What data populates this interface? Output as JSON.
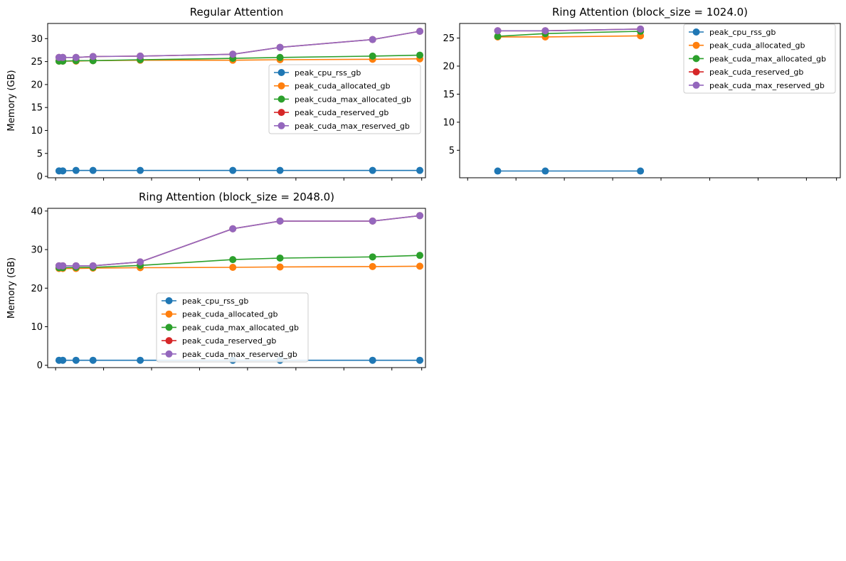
{
  "figure": {
    "colors": {
      "peak_cpu_rss_gb": "#1f77b4",
      "peak_cuda_allocated_gb": "#ff7f0e",
      "peak_cuda_max_allocated_gb": "#2ca02c",
      "peak_cuda_reserved_gb": "#d62728",
      "peak_cuda_max_reserved_gb": "#9467bd"
    }
  },
  "chart_data": [
    {
      "type": "line",
      "title": "Regular Attention",
      "xlabel": "",
      "ylabel": "Memory (GB)",
      "xlim": [
        0,
        1
      ],
      "ylim": [
        -0.3,
        33.3
      ],
      "yticks": [
        0,
        5,
        10,
        15,
        20,
        25,
        30
      ],
      "grid": false,
      "legend": "center-right",
      "x": [
        0.03,
        0.04,
        0.075,
        0.12,
        0.245,
        0.49,
        0.615,
        0.86,
        0.985
      ],
      "series": [
        {
          "name": "peak_cpu_rss_gb",
          "values": [
            1.2,
            1.2,
            1.3,
            1.3,
            1.3,
            1.3,
            1.3,
            1.3,
            1.3
          ]
        },
        {
          "name": "peak_cuda_allocated_gb",
          "values": [
            25.1,
            25.1,
            25.1,
            25.2,
            25.3,
            25.3,
            25.4,
            25.5,
            25.6
          ]
        },
        {
          "name": "peak_cuda_max_allocated_gb",
          "values": [
            25.1,
            25.1,
            25.2,
            25.2,
            25.4,
            25.7,
            25.9,
            26.2,
            26.4
          ]
        },
        {
          "name": "peak_cuda_reserved_gb",
          "values": [
            25.9,
            25.9,
            25.9,
            26.1,
            26.2,
            26.6,
            28.1,
            29.8,
            31.6
          ]
        },
        {
          "name": "peak_cuda_max_reserved_gb",
          "values": [
            25.9,
            25.9,
            25.9,
            26.1,
            26.2,
            26.6,
            28.1,
            29.8,
            31.6
          ]
        }
      ]
    },
    {
      "type": "line",
      "title": "Ring Attention (block_size = 1024.0)",
      "xlabel": "",
      "ylabel": "",
      "xlim": [
        0,
        1
      ],
      "ylim": [
        0.1,
        27.6
      ],
      "yticks": [
        5,
        10,
        15,
        20,
        25
      ],
      "grid": false,
      "legend": "top-right",
      "x": [
        0.1,
        0.225,
        0.475
      ],
      "series": [
        {
          "name": "peak_cpu_rss_gb",
          "values": [
            1.3,
            1.3,
            1.3
          ]
        },
        {
          "name": "peak_cuda_allocated_gb",
          "values": [
            25.2,
            25.2,
            25.4
          ]
        },
        {
          "name": "peak_cuda_max_allocated_gb",
          "values": [
            25.3,
            25.8,
            26.2
          ]
        },
        {
          "name": "peak_cuda_reserved_gb",
          "values": [
            26.3,
            26.3,
            26.6
          ]
        },
        {
          "name": "peak_cuda_max_reserved_gb",
          "values": [
            26.3,
            26.3,
            26.6
          ]
        }
      ]
    },
    {
      "type": "line",
      "title": "Ring Attention (block_size = 2048.0)",
      "xlabel": "",
      "ylabel": "Memory (GB)",
      "xlim": [
        0,
        1
      ],
      "ylim": [
        -0.6,
        40.7
      ],
      "yticks": [
        0,
        10,
        20,
        30,
        40
      ],
      "grid": false,
      "legend": "lower-center",
      "x": [
        0.03,
        0.04,
        0.075,
        0.12,
        0.245,
        0.49,
        0.615,
        0.86,
        0.985
      ],
      "series": [
        {
          "name": "peak_cpu_rss_gb",
          "values": [
            1.3,
            1.3,
            1.3,
            1.3,
            1.3,
            1.3,
            1.3,
            1.3,
            1.3
          ]
        },
        {
          "name": "peak_cuda_allocated_gb",
          "values": [
            25.1,
            25.1,
            25.1,
            25.2,
            25.3,
            25.4,
            25.5,
            25.6,
            25.7
          ]
        },
        {
          "name": "peak_cuda_max_allocated_gb",
          "values": [
            25.3,
            25.3,
            25.4,
            25.4,
            25.9,
            27.4,
            27.8,
            28.1,
            28.5
          ]
        },
        {
          "name": "peak_cuda_reserved_gb",
          "values": [
            25.8,
            25.8,
            25.8,
            25.8,
            26.8,
            35.4,
            37.4,
            37.4,
            38.8
          ]
        },
        {
          "name": "peak_cuda_max_reserved_gb",
          "values": [
            25.8,
            25.8,
            25.8,
            25.8,
            26.8,
            35.4,
            37.4,
            37.4,
            38.8
          ]
        }
      ]
    }
  ]
}
